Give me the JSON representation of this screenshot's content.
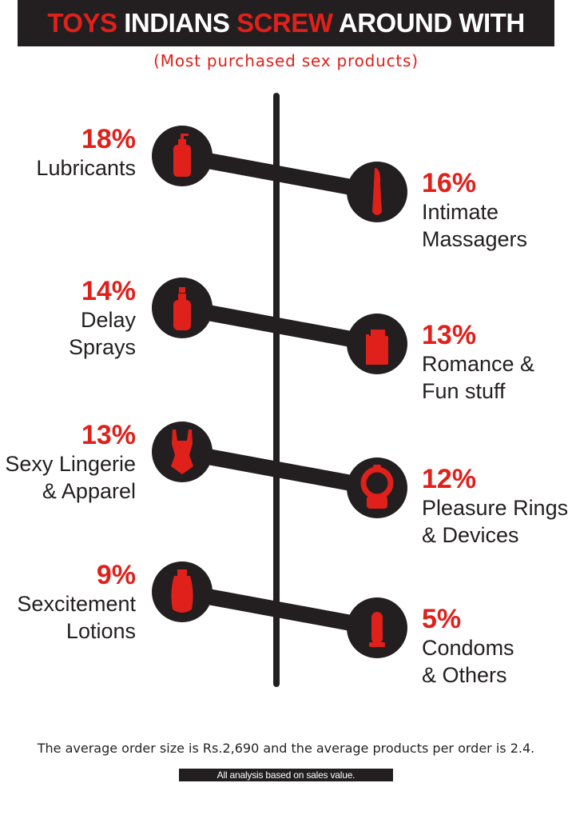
{
  "header": {
    "title_parts": [
      {
        "text": "TOYS ",
        "color": "#e0201a"
      },
      {
        "text": "INDIANS ",
        "color": "#ffffff"
      },
      {
        "text": "SCREW ",
        "color": "#e0201a"
      },
      {
        "text": "AROUND WITH",
        "color": "#ffffff"
      }
    ],
    "subtitle": "(Most purchased sex products)"
  },
  "chart_data": {
    "type": "bar",
    "title": "TOYS INDIANS SCREW AROUND WITH",
    "subtitle": "(Most purchased sex products)",
    "unit": "%",
    "categories": [
      "Lubricants",
      "Intimate Massagers",
      "Delay Sprays",
      "Romance & Fun stuff",
      "Sexy Lingerie & Apparel",
      "Pleasure Rings & Devices",
      "Sexcitement Lotions",
      "Condoms & Others"
    ],
    "values": [
      18,
      16,
      14,
      13,
      13,
      12,
      9,
      5
    ],
    "items": [
      {
        "value": 18,
        "pct": "18%",
        "label_lines": [
          "Lubricants"
        ],
        "side": "left",
        "icon": "lubricant-bottle-icon"
      },
      {
        "value": 16,
        "pct": "16%",
        "label_lines": [
          "Intimate",
          "Massagers"
        ],
        "side": "right",
        "icon": "massager-icon"
      },
      {
        "value": 14,
        "pct": "14%",
        "label_lines": [
          "Delay",
          "Sprays"
        ],
        "side": "left",
        "icon": "spray-bottle-icon"
      },
      {
        "value": 13,
        "pct": "13%",
        "label_lines": [
          "Romance &",
          "Fun stuff"
        ],
        "side": "right",
        "icon": "gift-box-icon"
      },
      {
        "value": 13,
        "pct": "13%",
        "label_lines": [
          "Sexy Lingerie",
          "& Apparel"
        ],
        "side": "left",
        "icon": "lingerie-icon"
      },
      {
        "value": 12,
        "pct": "12%",
        "label_lines": [
          "Pleasure Rings",
          "& Devices"
        ],
        "side": "right",
        "icon": "ring-icon"
      },
      {
        "value": 9,
        "pct": "9%",
        "label_lines": [
          "Sexcitement",
          "Lotions"
        ],
        "side": "left",
        "icon": "lotion-bottle-icon"
      },
      {
        "value": 5,
        "pct": "5%",
        "label_lines": [
          "Condoms",
          "& Others"
        ],
        "side": "right",
        "icon": "condom-icon"
      }
    ],
    "colors": {
      "accent": "#e0201a",
      "dark": "#231f20"
    }
  },
  "footer": {
    "average_text": "The average order size is Rs.2,690 and the average products per order is 2.4.",
    "note": "All analysis based on sales value."
  }
}
